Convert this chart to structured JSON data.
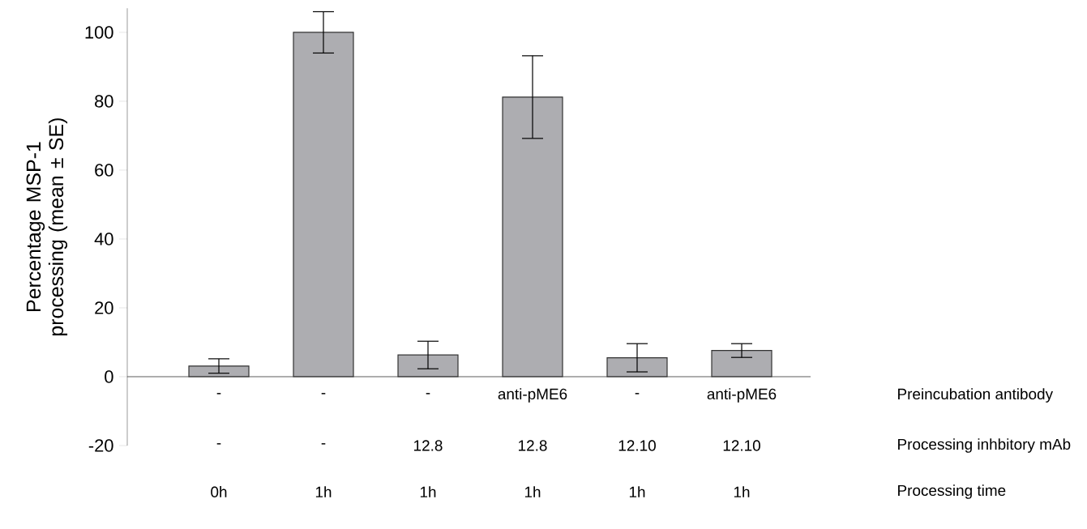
{
  "chart_data": {
    "type": "bar",
    "ylabel": "Percentage MSP-1 processing (mean ± SE)",
    "categories": [
      "0h",
      "1h",
      "1h",
      "1h",
      "1h",
      "1h"
    ],
    "values": [
      3.1,
      100,
      6.3,
      81.2,
      5.5,
      7.6
    ],
    "errors": [
      2.1,
      6,
      4,
      12,
      4.1,
      2
    ],
    "color": "#adadb1",
    "ylim": [
      -20,
      107
    ],
    "yticks": [
      -20,
      0,
      20,
      40,
      60,
      80,
      100
    ],
    "annotations": [
      "-",
      "-",
      "-",
      "anti-pME6",
      "-",
      "anti-pME6",
      "Preincubation antibody",
      "-",
      "-",
      "12.8",
      "12.8",
      "12.10",
      "12.10",
      "Processing inhbitory mAb",
      "Processing time"
    ]
  }
}
